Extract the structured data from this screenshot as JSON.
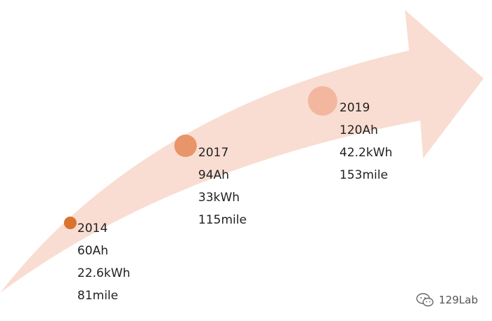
{
  "milestones": [
    {
      "year": "2014",
      "capacity": "60Ah",
      "energy": "22.6kWh",
      "range": "81mile",
      "dot_color": "#D9732F"
    },
    {
      "year": "2017",
      "capacity": "94Ah",
      "energy": "33kWh",
      "range": "115mile",
      "dot_color": "#E8956A"
    },
    {
      "year": "2019",
      "capacity": "120Ah",
      "energy": "42.2kWh",
      "range": "153mile",
      "dot_color": "#F3B7A0"
    }
  ],
  "arrow_color": "#F9DDD2",
  "watermark": {
    "text": "129Lab",
    "icon": "wechat-icon"
  }
}
